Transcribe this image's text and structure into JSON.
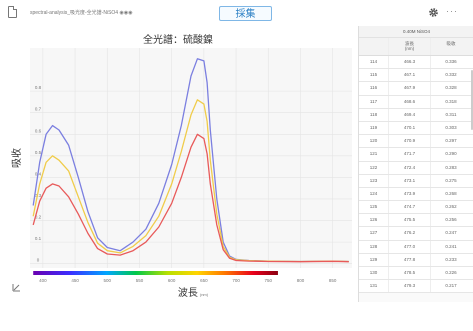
{
  "header": {
    "filename": "spectral-analysis_吸光度-全光譜-NiSO4 ◉◉◉",
    "collect_label": "採集",
    "more_label": "···"
  },
  "chart_data": {
    "type": "line",
    "title": "全光譜：硫酸鎳",
    "xlabel": "波長",
    "xunit": "(nm)",
    "ylabel": "吸收",
    "xlim": [
      380,
      880
    ],
    "ylim": [
      -0.02,
      1.0
    ],
    "yticks": [
      0,
      0.1,
      0.2,
      0.3,
      0.4,
      0.5,
      0.6,
      0.7,
      0.8
    ],
    "xticks": [
      400,
      450,
      500,
      550,
      600,
      650,
      700,
      750,
      800,
      850
    ],
    "grid": true,
    "series": [
      {
        "color": "#7b7fe0",
        "x": [
          385,
          395,
          405,
          415,
          425,
          440,
          455,
          470,
          485,
          500,
          520,
          540,
          560,
          580,
          600,
          615,
          630,
          640,
          650,
          655,
          660,
          670,
          680,
          690,
          700,
          720,
          750,
          800,
          850,
          875
        ],
        "y": [
          0.27,
          0.47,
          0.6,
          0.64,
          0.62,
          0.55,
          0.4,
          0.24,
          0.12,
          0.075,
          0.06,
          0.1,
          0.16,
          0.28,
          0.46,
          0.64,
          0.87,
          0.95,
          0.94,
          0.84,
          0.62,
          0.3,
          0.1,
          0.035,
          0.02,
          0.015,
          0.012,
          0.01,
          0.012,
          0.01
        ]
      },
      {
        "color": "#f0cc4a",
        "x": [
          385,
          395,
          405,
          415,
          425,
          440,
          455,
          470,
          485,
          500,
          520,
          540,
          560,
          580,
          600,
          615,
          630,
          640,
          650,
          655,
          660,
          670,
          680,
          690,
          700,
          720,
          750,
          800,
          850,
          875
        ],
        "y": [
          0.22,
          0.37,
          0.47,
          0.5,
          0.48,
          0.43,
          0.31,
          0.19,
          0.095,
          0.06,
          0.05,
          0.08,
          0.13,
          0.22,
          0.37,
          0.52,
          0.69,
          0.76,
          0.74,
          0.66,
          0.48,
          0.23,
          0.08,
          0.03,
          0.018,
          0.014,
          0.012,
          0.01,
          0.012,
          0.01
        ]
      },
      {
        "color": "#e85a5a",
        "x": [
          385,
          395,
          405,
          415,
          425,
          440,
          455,
          470,
          485,
          500,
          520,
          540,
          560,
          580,
          600,
          615,
          630,
          640,
          650,
          655,
          660,
          670,
          680,
          690,
          700,
          720,
          750,
          800,
          850,
          875
        ],
        "y": [
          0.18,
          0.29,
          0.35,
          0.37,
          0.36,
          0.31,
          0.23,
          0.14,
          0.07,
          0.045,
          0.04,
          0.06,
          0.1,
          0.17,
          0.28,
          0.4,
          0.54,
          0.6,
          0.58,
          0.51,
          0.37,
          0.18,
          0.065,
          0.025,
          0.015,
          0.012,
          0.01,
          0.009,
          0.011,
          0.009
        ]
      }
    ]
  },
  "table": {
    "title": "0.40M NiSO4",
    "headers": {
      "wavelength": "波長",
      "wavelength_unit": "(nm)",
      "absorbance": "吸收"
    },
    "rows": [
      {
        "idx": "114",
        "wl": "466.3",
        "ab": "0.336"
      },
      {
        "idx": "115",
        "wl": "467.1",
        "ab": "0.332"
      },
      {
        "idx": "116",
        "wl": "467.9",
        "ab": "0.328"
      },
      {
        "idx": "117",
        "wl": "468.6",
        "ab": "0.318"
      },
      {
        "idx": "118",
        "wl": "469.4",
        "ab": "0.311"
      },
      {
        "idx": "119",
        "wl": "470.1",
        "ab": "0.303"
      },
      {
        "idx": "120",
        "wl": "470.9",
        "ab": "0.297"
      },
      {
        "idx": "121",
        "wl": "471.7",
        "ab": "0.290"
      },
      {
        "idx": "122",
        "wl": "472.4",
        "ab": "0.283"
      },
      {
        "idx": "123",
        "wl": "473.1",
        "ab": "0.275"
      },
      {
        "idx": "124",
        "wl": "473.9",
        "ab": "0.268"
      },
      {
        "idx": "125",
        "wl": "474.7",
        "ab": "0.262"
      },
      {
        "idx": "126",
        "wl": "475.5",
        "ab": "0.256"
      },
      {
        "idx": "127",
        "wl": "476.2",
        "ab": "0.247"
      },
      {
        "idx": "128",
        "wl": "477.0",
        "ab": "0.241"
      },
      {
        "idx": "129",
        "wl": "477.8",
        "ab": "0.233"
      },
      {
        "idx": "130",
        "wl": "478.5",
        "ab": "0.226"
      },
      {
        "idx": "131",
        "wl": "479.3",
        "ab": "0.217"
      }
    ]
  }
}
